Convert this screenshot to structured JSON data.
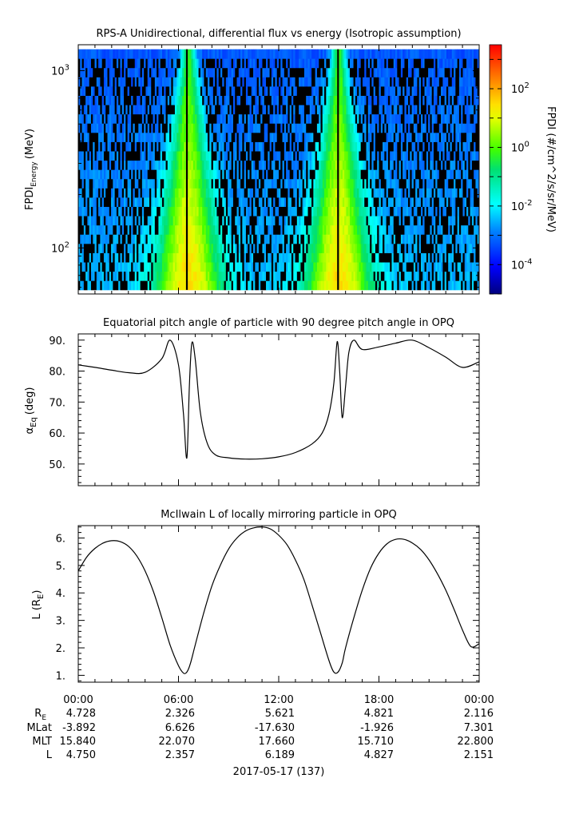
{
  "panel1": {
    "title": "RPS-A Unidirectional, differential flux vs energy (Isotropic assumption)",
    "ylabel_main": "FPDI",
    "ylabel_sub": "Energy",
    "ylabel_unit": "(MeV)",
    "colorbar_label": "FPDI (#/cm^2/s/sr/MeV)",
    "colorbar_ticks": [
      {
        "base": "10",
        "exp": "2",
        "log": 2
      },
      {
        "base": "10",
        "exp": "0",
        "log": 0
      },
      {
        "base": "10",
        "exp": "-2",
        "log": -2
      },
      {
        "base": "10",
        "exp": "-4",
        "log": -4
      }
    ],
    "y_ticks": [
      {
        "base": "10",
        "exp": "3",
        "value": 1000
      },
      {
        "base": "10",
        "exp": "2",
        "value": 100
      }
    ]
  },
  "panel2": {
    "title": "Equatorial pitch angle of particle with 90 degree pitch angle in OPQ",
    "ylabel_main": "α",
    "ylabel_sub": "Eq",
    "ylabel_unit": "(deg)",
    "y_ticks": [
      "90.",
      "80.",
      "70.",
      "60.",
      "50."
    ]
  },
  "panel3": {
    "title": "McIlwain L of locally mirroring particle in OPQ",
    "ylabel_main": "L (R",
    "ylabel_sub": "E",
    "ylabel_close": ")",
    "y_ticks": [
      "6.",
      "5.",
      "4.",
      "3.",
      "2.",
      "1."
    ]
  },
  "x_ticks": [
    "00:00",
    "06:00",
    "12:00",
    "18:00",
    "00:00"
  ],
  "ephemeris": {
    "row_labels": [
      "R",
      "MLat",
      "MLT",
      "L"
    ],
    "re_sub": "E",
    "columns": [
      [
        "4.728",
        "-3.892",
        "15.840",
        "4.750"
      ],
      [
        "2.326",
        "6.626",
        "22.070",
        "2.357"
      ],
      [
        "5.621",
        "-17.630",
        "17.660",
        "6.189"
      ],
      [
        "4.821",
        "-1.926",
        "15.710",
        "4.827"
      ],
      [
        "2.116",
        "7.301",
        "22.800",
        "2.151"
      ]
    ]
  },
  "date_label": "2017-05-17 (137)",
  "chart_data": [
    {
      "type": "heatmap",
      "title": "RPS-A Unidirectional, differential flux vs energy (Isotropic assumption)",
      "ylabel": "FPDI Energy (MeV)",
      "yscale": "log",
      "ylim": [
        55,
        1400
      ],
      "x_range_hours": [
        0,
        24
      ],
      "colorbar": {
        "label": "FPDI (#/cm^2/s/sr/MeV)",
        "scale": "log",
        "range_log10": [
          -5,
          3.5
        ]
      },
      "bright_bands_hours": [
        6.6,
        15.6
      ]
    },
    {
      "type": "line",
      "title": "Equatorial pitch angle of particle with 90 degree pitch angle in OPQ",
      "ylabel": "αEq (deg)",
      "ylim": [
        43,
        92
      ],
      "x_hours": [
        0,
        1,
        2,
        3,
        4,
        5,
        5.5,
        6.0,
        6.3,
        6.5,
        6.65,
        6.8,
        7.0,
        7.3,
        7.7,
        8.2,
        9,
        10,
        11,
        12,
        13,
        14,
        14.6,
        15.0,
        15.3,
        15.5,
        15.65,
        15.8,
        16.0,
        16.2,
        16.5,
        17,
        18,
        19,
        20,
        21,
        22,
        23,
        24
      ],
      "y": [
        82,
        81.2,
        80.3,
        79.5,
        79.6,
        84,
        90,
        82,
        66,
        52,
        75,
        89,
        84,
        67,
        57,
        53,
        52,
        51.6,
        51.7,
        52.3,
        53.7,
        56.5,
        60,
        66,
        76,
        89.5,
        80,
        65,
        75,
        86,
        90,
        87,
        87.8,
        89,
        90,
        87.5,
        84.5,
        81.2,
        83
      ]
    },
    {
      "type": "line",
      "title": "McIlwain L of locally mirroring particle in OPQ",
      "ylabel": "L (RE)",
      "ylim": [
        0.75,
        6.45
      ],
      "x_hours": [
        0,
        0.5,
        1,
        1.5,
        2,
        2.5,
        3,
        3.5,
        4,
        4.5,
        5,
        5.5,
        6,
        6.3,
        6.5,
        6.7,
        7,
        7.5,
        8,
        8.5,
        9,
        9.5,
        10,
        10.5,
        11,
        11.5,
        12,
        12.5,
        13,
        13.5,
        14,
        14.5,
        15,
        15.3,
        15.55,
        15.8,
        16,
        16.5,
        17,
        17.5,
        18,
        18.5,
        19,
        19.5,
        20,
        20.5,
        21,
        21.5,
        22,
        22.5,
        23,
        23.5,
        24
      ],
      "y": [
        4.8,
        5.3,
        5.62,
        5.82,
        5.9,
        5.87,
        5.7,
        5.35,
        4.8,
        4.05,
        3.1,
        2.1,
        1.35,
        1.08,
        1.12,
        1.4,
        2.1,
        3.25,
        4.25,
        5.0,
        5.6,
        6.0,
        6.25,
        6.37,
        6.4,
        6.33,
        6.1,
        5.75,
        5.2,
        4.5,
        3.55,
        2.55,
        1.55,
        1.12,
        1.12,
        1.45,
        2.0,
        3.1,
        4.1,
        4.9,
        5.45,
        5.8,
        5.95,
        5.95,
        5.82,
        5.58,
        5.2,
        4.7,
        4.1,
        3.4,
        2.65,
        2.05,
        2.15
      ]
    }
  ]
}
